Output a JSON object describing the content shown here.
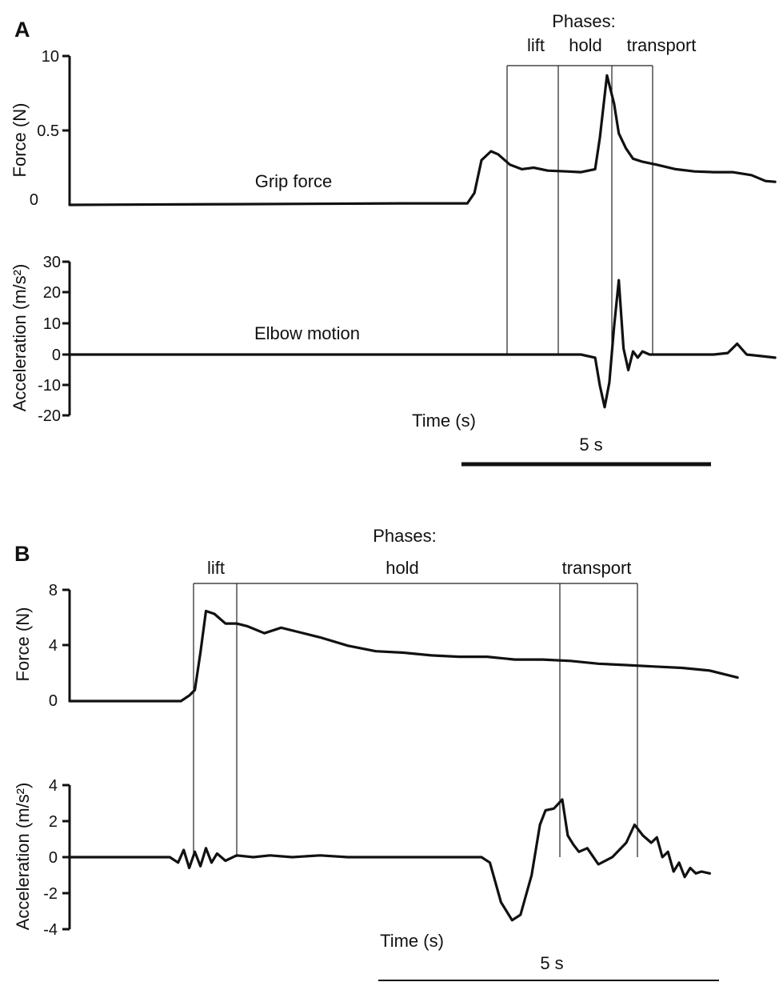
{
  "chart_data": [
    {
      "panel": "A",
      "type": "line",
      "phases_title": "Phases:",
      "phases": [
        "lift",
        "hold",
        "transport"
      ],
      "xlabel": "Time (s)",
      "scale_bar_label": "5 s",
      "subplots": [
        {
          "ylabel": "Force (N)",
          "yticks": [
            "10",
            "0.5",
            "0"
          ],
          "series_label": "Grip force",
          "x": [
            0,
            3.5,
            7,
            8.4,
            8.55,
            8.7,
            8.9,
            9.05,
            9.3,
            9.55,
            9.8,
            10.1,
            10.5,
            10.8,
            11.1,
            11.2,
            11.35,
            11.5,
            11.6,
            11.75,
            11.9,
            12.1,
            12.4,
            12.8,
            13.2,
            13.6,
            14.0,
            14.4,
            14.7,
            14.9
          ],
          "values": [
            0,
            0.005,
            0.01,
            0.01,
            0.08,
            0.3,
            0.36,
            0.34,
            0.27,
            0.24,
            0.25,
            0.23,
            0.225,
            0.22,
            0.24,
            0.45,
            0.87,
            0.68,
            0.48,
            0.38,
            0.31,
            0.29,
            0.27,
            0.24,
            0.225,
            0.22,
            0.22,
            0.2,
            0.16,
            0.155
          ]
        },
        {
          "ylabel": "Acceleration (m/s²)",
          "yticks": [
            "30",
            "20",
            "10",
            "0",
            "-10",
            "-20"
          ],
          "series_label": "Elbow motion",
          "x": [
            0,
            10.8,
            11.1,
            11.2,
            11.3,
            11.4,
            11.5,
            11.6,
            11.7,
            11.8,
            11.9,
            12.0,
            12.1,
            12.25,
            12.5,
            13.0,
            13.6,
            13.9,
            14.1,
            14.3,
            14.6,
            14.9
          ],
          "values": [
            0,
            0,
            -1,
            -10,
            -17,
            -9,
            9,
            24,
            2,
            -5,
            1,
            -1,
            1,
            0,
            0,
            0,
            0,
            0.5,
            3.5,
            0,
            -0.5,
            -1
          ]
        }
      ]
    },
    {
      "panel": "B",
      "type": "line",
      "phases_title": "Phases:",
      "phases": [
        "lift",
        "hold",
        "transport"
      ],
      "xlabel": "Time (s)",
      "scale_bar_label": "5 s",
      "subplots": [
        {
          "ylabel": "Force (N)",
          "yticks": [
            "8",
            "4",
            "0"
          ],
          "x": [
            0,
            2.0,
            2.15,
            2.25,
            2.35,
            2.45,
            2.6,
            2.8,
            3.0,
            3.2,
            3.5,
            3.8,
            4.1,
            4.5,
            5.0,
            5.5,
            6.0,
            6.5,
            7.0,
            7.5,
            8.0,
            8.5,
            9.0,
            9.5,
            10.0,
            10.5,
            11.0,
            11.5,
            12.0
          ],
          "values": [
            0,
            0,
            0.4,
            0.8,
            3.5,
            6.5,
            6.3,
            5.6,
            5.6,
            5.4,
            4.9,
            5.3,
            5.0,
            4.6,
            4.0,
            3.6,
            3.5,
            3.3,
            3.2,
            3.2,
            3.0,
            3.0,
            2.9,
            2.7,
            2.6,
            2.5,
            2.4,
            2.2,
            1.7
          ]
        },
        {
          "ylabel": "Acceleration (m/s²)",
          "yticks": [
            "4",
            "2",
            "0",
            "-2",
            "-4"
          ],
          "x": [
            0,
            1.8,
            1.95,
            2.05,
            2.15,
            2.25,
            2.35,
            2.45,
            2.55,
            2.65,
            2.8,
            3.0,
            3.3,
            3.6,
            4.0,
            4.5,
            5.0,
            6.0,
            7.0,
            7.4,
            7.55,
            7.75,
            7.95,
            8.1,
            8.3,
            8.45,
            8.55,
            8.7,
            8.85,
            8.95,
            9.05,
            9.15,
            9.3,
            9.5,
            9.75,
            10.0,
            10.15,
            10.3,
            10.45,
            10.55,
            10.65,
            10.75,
            10.85,
            10.95,
            11.05,
            11.15,
            11.25,
            11.35,
            11.5
          ],
          "values": [
            0,
            0,
            -0.3,
            0.4,
            -0.6,
            0.3,
            -0.5,
            0.5,
            -0.3,
            0.2,
            -0.2,
            0.1,
            0,
            0.1,
            0,
            0.1,
            0,
            0,
            0,
            0,
            -0.3,
            -2.5,
            -3.5,
            -3.2,
            -1.0,
            1.8,
            2.6,
            2.7,
            3.2,
            1.2,
            0.7,
            0.3,
            0.5,
            -0.4,
            0,
            0.8,
            1.8,
            1.2,
            0.8,
            1.1,
            0,
            0.3,
            -0.8,
            -0.3,
            -1.1,
            -0.6,
            -0.9,
            -0.8,
            -0.9
          ]
        }
      ]
    }
  ]
}
